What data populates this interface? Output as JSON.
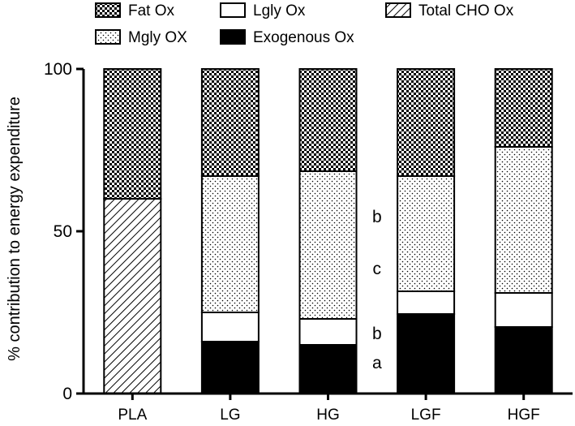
{
  "chart_data": {
    "type": "bar",
    "stacked": true,
    "ylabel": "% contribution to energy expenditure",
    "xlabel": "",
    "ylim": [
      0,
      100
    ],
    "yticks": [
      "0",
      "50",
      "100"
    ],
    "categories": [
      "PLA",
      "LG",
      "HG",
      "LGF",
      "HGF"
    ],
    "legend_position": "top",
    "grid": false,
    "legend": [
      {
        "label": "Fat Ox",
        "pattern": "checker"
      },
      {
        "label": "Lgly Ox",
        "pattern": "white"
      },
      {
        "label": "Total CHO Ox",
        "pattern": "diagonal"
      },
      {
        "label": "Mgly OX",
        "pattern": "dots"
      },
      {
        "label": "Exogenous Ox",
        "pattern": "black"
      }
    ],
    "series": [
      {
        "name": "Exogenous Ox",
        "pattern": "black",
        "values": [
          0,
          16,
          15,
          24.5,
          20.5
        ]
      },
      {
        "name": "Lgly Ox",
        "pattern": "white",
        "values": [
          0,
          9,
          8,
          7,
          10.5
        ]
      },
      {
        "name": "Mgly OX",
        "pattern": "dots",
        "values": [
          0,
          42,
          45.5,
          35.5,
          45
        ]
      },
      {
        "name": "Total CHO Ox",
        "pattern": "diagonal",
        "values": [
          60,
          0,
          0,
          0,
          0
        ]
      },
      {
        "name": "Fat Ox",
        "pattern": "checker",
        "values": [
          40,
          33,
          31.5,
          33,
          24
        ]
      }
    ],
    "annotations": [
      {
        "text": "b",
        "category_after": "HG",
        "y": 54.5
      },
      {
        "text": "c",
        "category_after": "HG",
        "y": 38.5
      },
      {
        "text": "b",
        "category_after": "HG",
        "y": 18.5
      },
      {
        "text": "a",
        "category_after": "HG",
        "y": 9.5
      }
    ]
  }
}
